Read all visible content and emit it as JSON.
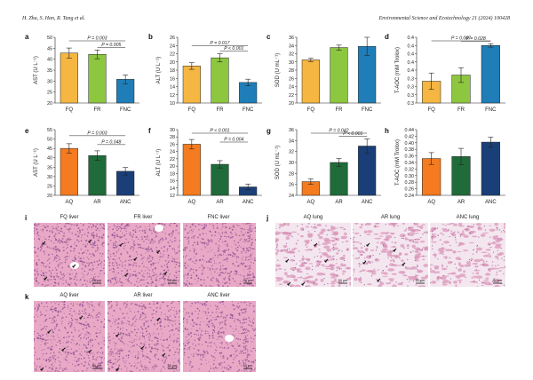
{
  "header": {
    "authors": "H. Zha, S. Han, R. Tang et al.",
    "journal": "Environmental Science and Ecotechnology 21 (2024) 100428"
  },
  "colors": {
    "FQ": "#f5b642",
    "FR": "#8dc63f",
    "FNC": "#1f7eb8",
    "AQ": "#f47b20",
    "AR": "#1f6b3a",
    "ANC": "#1a3f78",
    "tissue": "#e8a8c6",
    "nuclei": "#8a4f8e"
  },
  "chart_data": [
    {
      "id": "a",
      "type": "bar",
      "categories": [
        "FQ",
        "FR",
        "FNC"
      ],
      "values": [
        42.8,
        42.2,
        30.8
      ],
      "errors": [
        2.3,
        2.0,
        2.0
      ],
      "ylabel": "AST (U L⁻¹)",
      "ylim": [
        20,
        50
      ],
      "yticks": [
        20,
        25,
        30,
        35,
        40,
        45,
        50
      ],
      "annotations": [
        "P = 0.003",
        "P = 0.005"
      ]
    },
    {
      "id": "b",
      "type": "bar",
      "categories": [
        "FQ",
        "FR",
        "FNC"
      ],
      "values": [
        19.0,
        21.0,
        15.0
      ],
      "errors": [
        0.8,
        1.0,
        0.8
      ],
      "ylabel": "ALT (U L⁻¹)",
      "ylim": [
        10,
        26
      ],
      "yticks": [
        10,
        12,
        14,
        16,
        18,
        20,
        22,
        24,
        26
      ],
      "annotations": [
        "P = 0.017",
        "P < 0.001"
      ]
    },
    {
      "id": "c",
      "type": "bar",
      "categories": [
        "FQ",
        "FR",
        "FNC"
      ],
      "values": [
        30.5,
        33.5,
        33.8
      ],
      "errors": [
        0.4,
        0.6,
        2.2
      ],
      "ylabel": "SOD (U mL⁻¹)",
      "ylim": [
        20,
        36
      ],
      "yticks": [
        20,
        22,
        24,
        26,
        28,
        30,
        32,
        34,
        36
      ],
      "annotations": []
    },
    {
      "id": "d",
      "type": "bar",
      "categories": [
        "FQ",
        "FR",
        "FNC"
      ],
      "values": [
        0.333,
        0.348,
        0.42
      ],
      "errors": [
        0.02,
        0.018,
        0.004
      ],
      "ylabel": "T-AOC (mM Trolox)",
      "ylim": [
        0.28,
        0.44
      ],
      "yticks": [
        0.28,
        0.3,
        0.32,
        0.34,
        0.36,
        0.38,
        0.4,
        0.42,
        0.44
      ],
      "annotations": [
        "P = 0.007",
        "P = 0.028"
      ]
    },
    {
      "id": "e",
      "type": "bar",
      "categories": [
        "AQ",
        "AR",
        "ANC"
      ],
      "values": [
        45.0,
        41.2,
        32.8
      ],
      "errors": [
        2.5,
        2.5,
        2.0
      ],
      "ylabel": "AST (U L⁻¹)",
      "ylim": [
        20,
        55
      ],
      "yticks": [
        20,
        25,
        30,
        35,
        40,
        45,
        50,
        55
      ],
      "annotations": [
        "P = 0.003",
        "P = 0.048"
      ]
    },
    {
      "id": "f",
      "type": "bar",
      "categories": [
        "AQ",
        "AR",
        "ANC"
      ],
      "values": [
        26.0,
        20.5,
        14.3
      ],
      "errors": [
        1.3,
        1.0,
        0.8
      ],
      "ylabel": "ALT (U L⁻¹)",
      "ylim": [
        12,
        30
      ],
      "yticks": [
        12,
        14,
        16,
        18,
        20,
        22,
        24,
        26,
        28,
        30
      ],
      "annotations": [
        "P < 0.001",
        "P = 0.004"
      ]
    },
    {
      "id": "g",
      "type": "bar",
      "categories": [
        "AQ",
        "AR",
        "ANC"
      ],
      "values": [
        26.5,
        30.0,
        33.0
      ],
      "errors": [
        0.5,
        0.7,
        1.3
      ],
      "ylabel": "SOD (U mL⁻¹)",
      "ylim": [
        24,
        36
      ],
      "yticks": [
        24,
        26,
        28,
        30,
        32,
        34,
        36
      ],
      "annotations": [
        "P = 0.042",
        "P < 0.001"
      ]
    },
    {
      "id": "h",
      "type": "bar",
      "categories": [
        "AQ",
        "AR",
        "ANC"
      ],
      "values": [
        0.352,
        0.358,
        0.402
      ],
      "errors": [
        0.018,
        0.025,
        0.015
      ],
      "ylabel": "T-AOC (mM Trolox)",
      "ylim": [
        0.24,
        0.44
      ],
      "yticks": [
        0.24,
        0.26,
        0.28,
        0.3,
        0.32,
        0.34,
        0.36,
        0.38,
        0.4,
        0.42,
        0.44
      ],
      "annotations": []
    }
  ],
  "histology": {
    "i": {
      "captions": [
        "FQ liver",
        "FR liver",
        "FNC liver"
      ]
    },
    "j": {
      "captions": [
        "AQ lung",
        "AR lung",
        "ANC lung"
      ]
    },
    "k": {
      "captions": [
        "AQ liver",
        "AR liver",
        "ANC liver"
      ]
    },
    "scale_bar": "50 μm"
  }
}
